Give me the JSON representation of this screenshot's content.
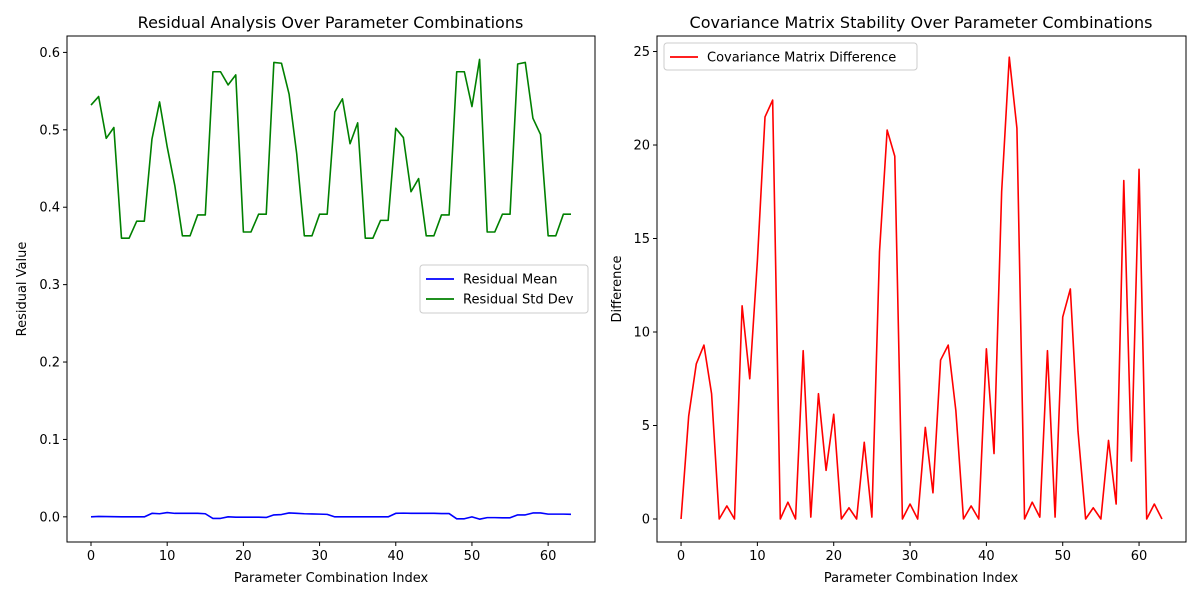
{
  "chart_data": [
    {
      "type": "line",
      "title": "Residual Analysis Over Parameter Combinations",
      "xlabel": "Parameter Combination Index",
      "ylabel": "Residual Value",
      "xlim": [
        -3.15,
        66.15
      ],
      "ylim": [
        -0.0325,
        0.6212
      ],
      "xticks": [
        0,
        10,
        20,
        30,
        40,
        50,
        60
      ],
      "yticks": [
        0.0,
        0.1,
        0.2,
        0.3,
        0.4,
        0.5,
        0.6
      ],
      "ytick_labels": [
        "0.0",
        "0.1",
        "0.2",
        "0.3",
        "0.4",
        "0.5",
        "0.6"
      ],
      "legend_position": "center-right",
      "grid": false,
      "x": [
        0,
        1,
        2,
        3,
        4,
        5,
        6,
        7,
        8,
        9,
        10,
        11,
        12,
        13,
        14,
        15,
        16,
        17,
        18,
        19,
        20,
        21,
        22,
        23,
        24,
        25,
        26,
        27,
        28,
        29,
        30,
        31,
        32,
        33,
        34,
        35,
        36,
        37,
        38,
        39,
        40,
        41,
        42,
        43,
        44,
        45,
        46,
        47,
        48,
        49,
        50,
        51,
        52,
        53,
        54,
        55,
        56,
        57,
        58,
        59,
        60,
        61,
        62,
        63
      ],
      "series": [
        {
          "name": "Residual Mean",
          "color": "#0000ff",
          "values": [
            0.0,
            0.0005,
            0.0003,
            0.0002,
            0.0001,
            0.0,
            0.0,
            0.0,
            0.0045,
            0.004,
            0.0055,
            0.0045,
            0.0045,
            0.0045,
            0.0045,
            0.004,
            -0.002,
            -0.002,
            0.0,
            -0.0005,
            -0.0005,
            -0.0005,
            -0.0005,
            -0.0008,
            0.0025,
            0.003,
            0.005,
            0.0045,
            0.004,
            0.0038,
            0.0035,
            0.0032,
            0.0,
            0.0,
            0.0,
            0.0,
            0.0,
            0.0,
            0.0,
            0.0,
            0.0045,
            0.0048,
            0.0045,
            0.0045,
            0.0045,
            0.0045,
            0.0042,
            0.0042,
            -0.0025,
            -0.0025,
            0.0,
            -0.003,
            -0.001,
            -0.001,
            -0.0012,
            -0.0012,
            0.0025,
            0.0025,
            0.005,
            0.005,
            0.0035,
            0.0035,
            0.0035,
            0.0033
          ]
        },
        {
          "name": "Residual Std Dev",
          "color": "#008000",
          "values": [
            0.532,
            0.543,
            0.489,
            0.503,
            0.36,
            0.36,
            0.382,
            0.382,
            0.488,
            0.536,
            0.478,
            0.428,
            0.363,
            0.363,
            0.39,
            0.39,
            0.575,
            0.575,
            0.558,
            0.571,
            0.368,
            0.368,
            0.391,
            0.391,
            0.587,
            0.586,
            0.546,
            0.469,
            0.363,
            0.363,
            0.391,
            0.391,
            0.523,
            0.54,
            0.482,
            0.509,
            0.36,
            0.36,
            0.383,
            0.383,
            0.502,
            0.49,
            0.42,
            0.437,
            0.363,
            0.363,
            0.39,
            0.39,
            0.575,
            0.575,
            0.53,
            0.591,
            0.368,
            0.368,
            0.391,
            0.391,
            0.585,
            0.587,
            0.515,
            0.494,
            0.363,
            0.363,
            0.391,
            0.391
          ]
        }
      ]
    },
    {
      "type": "line",
      "title": "Covariance Matrix Stability Over Parameter Combinations",
      "xlabel": "Parameter Combination Index",
      "ylabel": "Difference",
      "xlim": [
        -3.15,
        66.15
      ],
      "ylim": [
        -1.23,
        25.83
      ],
      "xticks": [
        0,
        10,
        20,
        30,
        40,
        50,
        60
      ],
      "yticks": [
        0,
        5,
        10,
        15,
        20,
        25
      ],
      "ytick_labels": [
        "0",
        "5",
        "10",
        "15",
        "20",
        "25"
      ],
      "legend_position": "top-left",
      "grid": false,
      "x": [
        0,
        1,
        2,
        3,
        4,
        5,
        6,
        7,
        8,
        9,
        10,
        11,
        12,
        13,
        14,
        15,
        16,
        17,
        18,
        19,
        20,
        21,
        22,
        23,
        24,
        25,
        26,
        27,
        28,
        29,
        30,
        31,
        32,
        33,
        34,
        35,
        36,
        37,
        38,
        39,
        40,
        41,
        42,
        43,
        44,
        45,
        46,
        47,
        48,
        49,
        50,
        51,
        52,
        53,
        54,
        55,
        56,
        57,
        58,
        59,
        60,
        61,
        62,
        63
      ],
      "series": [
        {
          "name": "Covariance Matrix Difference",
          "color": "#ff0000",
          "values": [
            0,
            5.5,
            8.3,
            9.3,
            6.7,
            0,
            0.7,
            0,
            11.4,
            7.5,
            13.8,
            21.5,
            22.4,
            0,
            0.9,
            0,
            9.0,
            0.1,
            6.7,
            2.6,
            5.6,
            0,
            0.6,
            0,
            4.1,
            0.1,
            14.3,
            20.8,
            19.4,
            0,
            0.8,
            0,
            4.9,
            1.4,
            8.5,
            9.3,
            5.8,
            0,
            0.7,
            0,
            9.1,
            3.5,
            17.5,
            24.7,
            20.9,
            0,
            0.9,
            0.1,
            9.0,
            0.1,
            10.8,
            12.3,
            4.7,
            0,
            0.6,
            0,
            4.2,
            0.8,
            18.1,
            3.1,
            18.7,
            0,
            0.8,
            0
          ]
        }
      ]
    }
  ]
}
